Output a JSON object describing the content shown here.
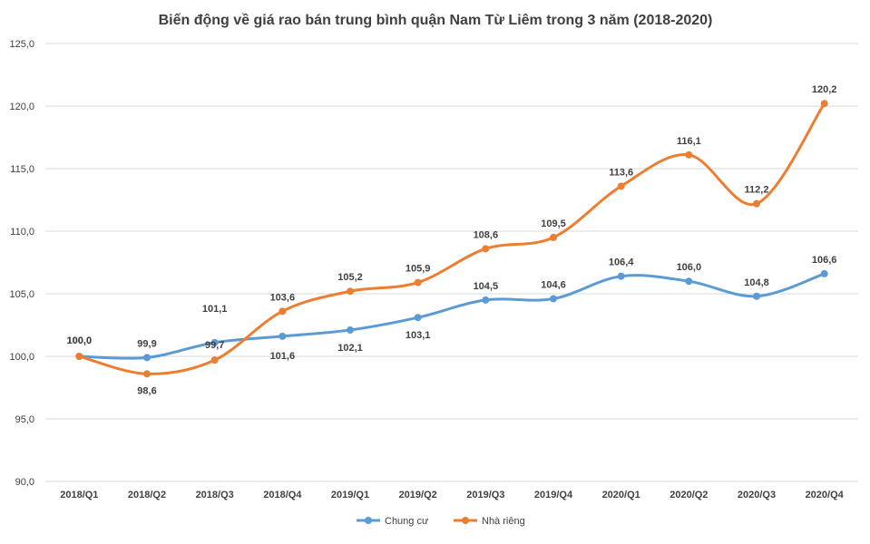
{
  "chart_data": {
    "type": "line",
    "title": "Biến động về giá rao bán trung bình quận Nam Từ Liêm trong 3 năm (2018-2020)",
    "xlabel": "",
    "ylabel": "",
    "categories": [
      "2018/Q1",
      "2018/Q2",
      "2018/Q3",
      "2018/Q4",
      "2019/Q1",
      "2019/Q2",
      "2019/Q3",
      "2019/Q4",
      "2020/Q1",
      "2020/Q2",
      "2020/Q3",
      "2020/Q4"
    ],
    "ylim": [
      90,
      125
    ],
    "yticks": [
      "90,0",
      "95,0",
      "100,0",
      "105,0",
      "110,0",
      "115,0",
      "120,0",
      "125,0"
    ],
    "grid": true,
    "legend_position": "bottom",
    "series": [
      {
        "name": "Chung cư",
        "color": "#5b9bd5",
        "values": [
          100.0,
          99.9,
          101.1,
          101.6,
          102.1,
          103.1,
          104.5,
          104.6,
          106.4,
          106.0,
          104.8,
          106.6
        ],
        "labels": [
          "100,0",
          "99,9",
          "101,1",
          "101,6",
          "102,1",
          "103,1",
          "104,5",
          "104,6",
          "106,4",
          "106,0",
          "104,8",
          "106,6"
        ]
      },
      {
        "name": "Nhà riêng",
        "color": "#ed7d31",
        "values": [
          100.0,
          98.6,
          99.7,
          103.6,
          105.2,
          105.9,
          108.6,
          109.5,
          113.6,
          116.1,
          112.2,
          120.2
        ],
        "labels": [
          "100,0",
          "98,6",
          "99,7",
          "103,6",
          "105,2",
          "105,9",
          "108,6",
          "109,5",
          "113,6",
          "116,1",
          "112,2",
          "120,2"
        ]
      }
    ]
  }
}
